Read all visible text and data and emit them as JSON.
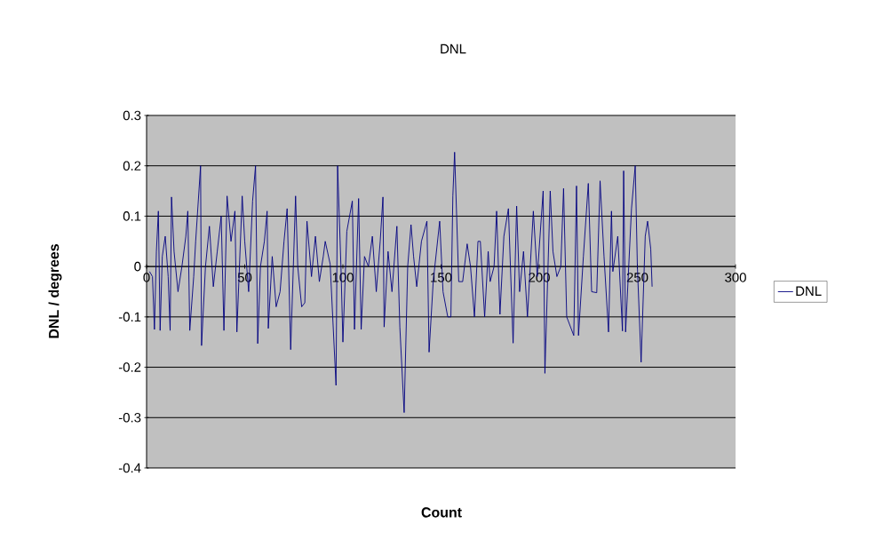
{
  "chart_data": {
    "type": "line",
    "title": "DNL",
    "xlabel": "Count",
    "ylabel": "DNL / degrees",
    "xlim": [
      0,
      300
    ],
    "xticks": [
      0,
      50,
      100,
      150,
      200,
      250,
      300
    ],
    "ylim": [
      -0.4,
      0.3
    ],
    "yticks": [
      -0.4,
      -0.3,
      -0.2,
      -0.1,
      0,
      0.1,
      0.2,
      0.3
    ],
    "grid": "y",
    "legend": "right",
    "marker": "none",
    "line_style": "solid",
    "series": [
      {
        "name": "DNL",
        "color": "#000080",
        "x": [
          1.5,
          3,
          4,
          5,
          6,
          6.9,
          8,
          9.5,
          11,
          12,
          12.7,
          14,
          16,
          18,
          20,
          21,
          22,
          24,
          25,
          27.5,
          28,
          30,
          32,
          34,
          36,
          38,
          39.4,
          41,
          43,
          45,
          46,
          48.7,
          50,
          52,
          54,
          55.5,
          56.6,
          58,
          60,
          61.4,
          62,
          64,
          66,
          68,
          70,
          71.6,
          73.4,
          75.9,
          77,
          79,
          80.6,
          81.7,
          84,
          86,
          88,
          90,
          91,
          93.5,
          96.5,
          97.3,
          99,
          100,
          102,
          104.8,
          105.9,
          108,
          109.3,
          111,
          113,
          115,
          117,
          119,
          120.4,
          121,
          123,
          125,
          127.5,
          129,
          131.2,
          133,
          134.7,
          136,
          137.6,
          140,
          142.8,
          143.9,
          146,
          149.3,
          151,
          153.4,
          155,
          156,
          156.9,
          159,
          161,
          163.3,
          165,
          167,
          168.8,
          170,
          172.2,
          174,
          175,
          177,
          178.3,
          180,
          182,
          184.3,
          186.7,
          188.5,
          190,
          192,
          194,
          197,
          199,
          202,
          202.9,
          205.6,
          207,
          209,
          211,
          212.4,
          214,
          217.6,
          219,
          220,
          222.5,
          225,
          226.7,
          229.3,
          231,
          233,
          235.3,
          236.8,
          237.5,
          240,
          242.4,
          243,
          244,
          247,
          248.9,
          250,
          251.9,
          254,
          255.2,
          256.8,
          257.5
        ],
        "values": [
          -0.01,
          -0.02,
          -0.125,
          0.03,
          0.11,
          -0.127,
          0.02,
          0.06,
          -0.02,
          -0.127,
          0.138,
          0.03,
          -0.05,
          0.0,
          0.06,
          0.11,
          -0.127,
          -0.02,
          0.05,
          0.2,
          -0.157,
          0.0,
          0.08,
          -0.04,
          0.03,
          0.1,
          -0.127,
          0.14,
          0.05,
          0.11,
          -0.13,
          0.14,
          0.05,
          -0.05,
          0.13,
          0.2,
          -0.153,
          0.0,
          0.05,
          0.11,
          -0.123,
          0.02,
          -0.08,
          -0.05,
          0.05,
          0.115,
          -0.165,
          0.14,
          0.0,
          -0.08,
          -0.072,
          0.09,
          -0.02,
          0.06,
          -0.03,
          0.02,
          0.05,
          0.005,
          -0.236,
          0.2,
          0.0,
          -0.15,
          0.07,
          0.13,
          -0.125,
          0.135,
          -0.125,
          0.02,
          0.0,
          0.06,
          -0.05,
          0.05,
          0.138,
          -0.12,
          0.03,
          -0.05,
          0.08,
          -0.12,
          -0.29,
          0.0,
          0.083,
          0.02,
          -0.04,
          0.05,
          0.09,
          -0.17,
          -0.03,
          0.09,
          -0.05,
          -0.1,
          -0.1,
          0.14,
          0.227,
          -0.03,
          -0.03,
          0.045,
          0.0,
          -0.1,
          0.05,
          0.05,
          -0.1,
          0.03,
          -0.03,
          0.0,
          0.11,
          -0.095,
          0.06,
          0.115,
          -0.152,
          0.12,
          -0.05,
          0.03,
          -0.1,
          0.11,
          -0.02,
          0.15,
          -0.212,
          0.15,
          0.03,
          -0.02,
          0.0,
          0.155,
          -0.1,
          -0.137,
          0.16,
          -0.137,
          0.02,
          0.165,
          -0.05,
          -0.052,
          0.17,
          0.02,
          -0.13,
          0.11,
          -0.01,
          0.06,
          -0.128,
          0.19,
          -0.13,
          0.115,
          0.2,
          0.0,
          -0.19,
          0.06,
          0.09,
          0.035,
          -0.04
        ]
      }
    ]
  }
}
